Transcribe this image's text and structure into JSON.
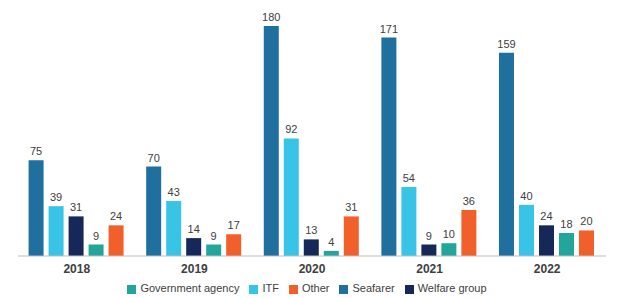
{
  "chart_data": {
    "type": "bar",
    "categories": [
      "2018",
      "2019",
      "2020",
      "2021",
      "2022"
    ],
    "series": [
      {
        "name": "Seafarer",
        "color": "#1f6f9f",
        "values": [
          75,
          70,
          180,
          171,
          159
        ]
      },
      {
        "name": "ITF",
        "color": "#38c4e6",
        "values": [
          39,
          43,
          92,
          54,
          40
        ]
      },
      {
        "name": "Welfare group",
        "color": "#16285a",
        "values": [
          31,
          14,
          13,
          9,
          24
        ]
      },
      {
        "name": "Government agency",
        "color": "#22a59b",
        "values": [
          9,
          9,
          4,
          10,
          18
        ]
      },
      {
        "name": "Other",
        "color": "#f1602a",
        "values": [
          24,
          17,
          31,
          36,
          20
        ]
      }
    ],
    "ylim": [
      0,
      180
    ],
    "data_labels": true,
    "tick_labels": "x",
    "grid": false,
    "legend": "bottom"
  }
}
